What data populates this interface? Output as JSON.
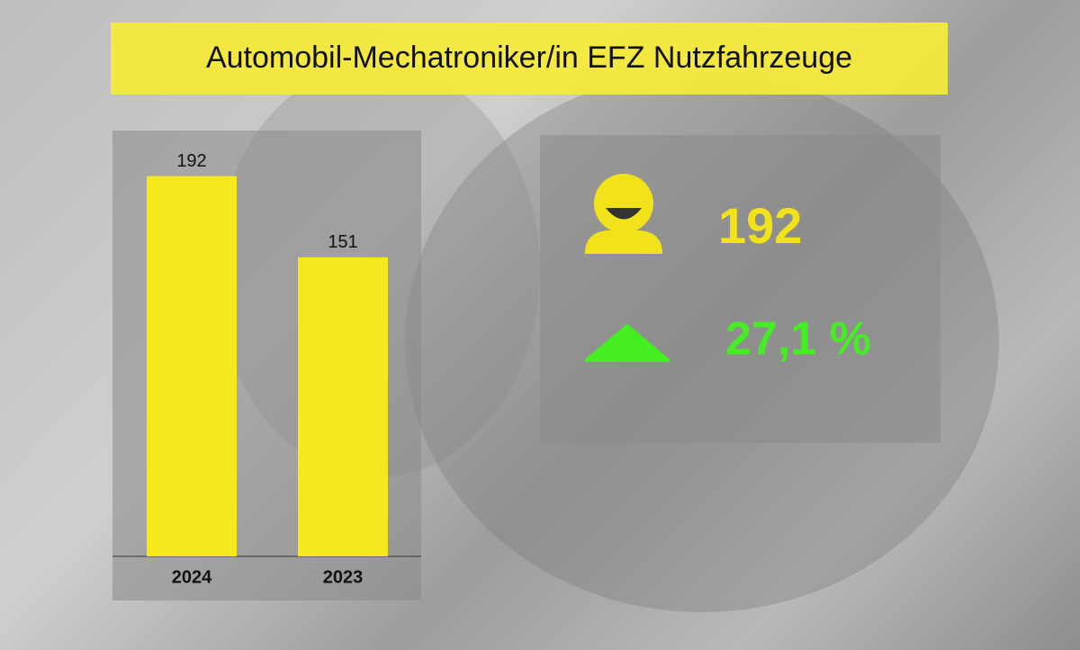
{
  "chart_data": {
    "type": "bar",
    "title": "Automobil-Mechatroniker/in EFZ Nutzfahrzeuge",
    "categories": [
      "2024",
      "2023"
    ],
    "values": [
      192,
      151
    ],
    "color": "#f5e81c",
    "ylim": [
      0,
      200
    ]
  },
  "kpi": {
    "count": 192,
    "change": {
      "value": 27.1,
      "label": "27,1 %"
    },
    "count_color": "#f2e21a",
    "change_color": "#44ee22"
  }
}
